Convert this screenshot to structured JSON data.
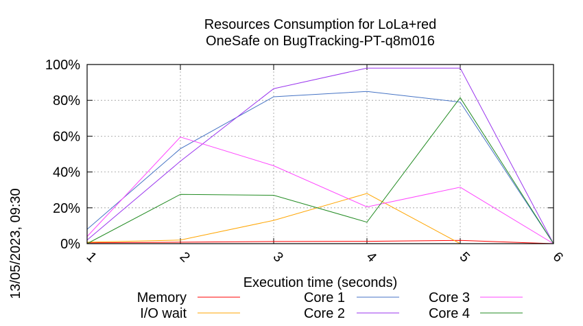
{
  "chart_data": {
    "type": "line",
    "title": "Resources Consumption for LoLa+red",
    "subtitle": "OneSafe on BugTracking-PT-q8m016",
    "xlabel": "Execution time (seconds)",
    "ylabel": "",
    "side_label": "13/05/2023, 09:30",
    "xlim": [
      1,
      6
    ],
    "ylim": [
      0,
      100
    ],
    "x_ticks": [
      "1",
      "2",
      "3",
      "4",
      "5",
      "6"
    ],
    "y_ticks": [
      "0%",
      "20%",
      "40%",
      "60%",
      "80%",
      "100%"
    ],
    "grid": true,
    "legend_position": "bottom",
    "x": [
      1,
      2,
      3,
      4,
      5,
      6
    ],
    "series": [
      {
        "name": "Memory",
        "color": "#ff0000",
        "values": [
          0.5,
          0.8,
          1.2,
          1.3,
          1.8,
          0
        ]
      },
      {
        "name": "I/O wait",
        "color": "#ffa500",
        "values": [
          0.8,
          2,
          13,
          28,
          0,
          0
        ]
      },
      {
        "name": "Core 1",
        "color": "#4472c4",
        "values": [
          8,
          53,
          82,
          85,
          79,
          0
        ]
      },
      {
        "name": "Core 2",
        "color": "#9933ee",
        "values": [
          2,
          46,
          86.5,
          98,
          98,
          0
        ]
      },
      {
        "name": "Core 3",
        "color": "#ff44ff",
        "values": [
          4,
          59.5,
          43.5,
          20.5,
          31.5,
          0
        ]
      },
      {
        "name": "Core 4",
        "color": "#228b22",
        "values": [
          0,
          27.5,
          27,
          12,
          81.5,
          0
        ]
      }
    ]
  }
}
